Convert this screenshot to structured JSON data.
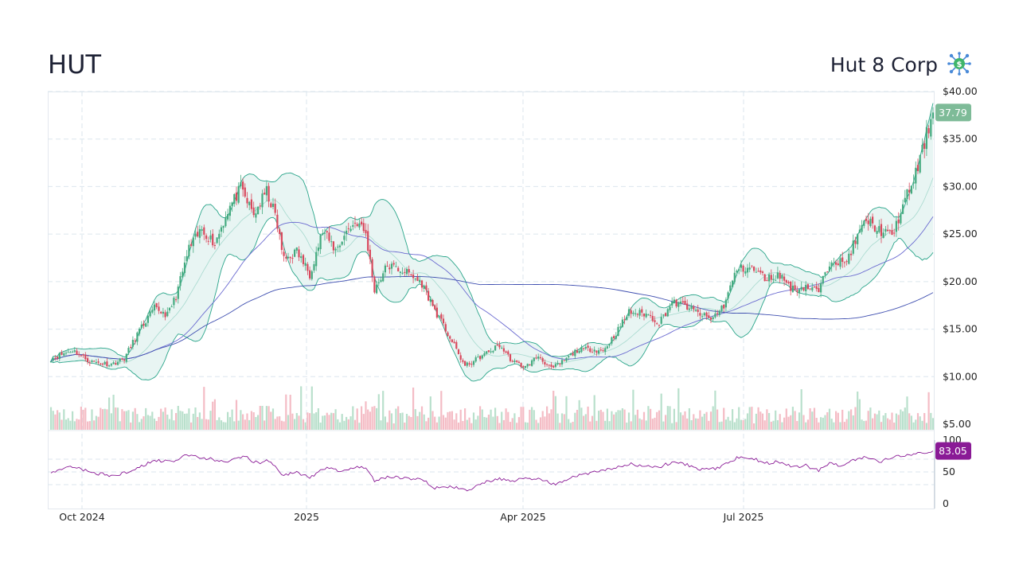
{
  "header": {
    "ticker": "HUT",
    "company": "Hut 8 Corp",
    "logo_icon": "bitcoin-network-icon"
  },
  "chart_data": {
    "type": "candlestick",
    "ticker": "HUT",
    "price_axis": {
      "min": 5,
      "max": 40,
      "ticks": [
        "$40.00",
        "$35.00",
        "$30.00",
        "$25.00",
        "$20.00",
        "$15.00",
        "$10.00",
        "$5.00"
      ]
    },
    "rsi_axis": {
      "min": 0,
      "max": 100,
      "ticks": [
        "100",
        "50",
        "0"
      ],
      "guides": [
        70,
        30
      ]
    },
    "x_ticks": [
      "Oct 2024",
      "2025",
      "Apr 2025",
      "Jul 2025"
    ],
    "last_price": "37.79",
    "last_rsi": "83.05",
    "colors": {
      "up": "#44aa7f",
      "down": "#d9485c",
      "volume_up": "#b9e0cc",
      "volume_down": "#f4bcc5",
      "band": "#2aa58a",
      "sma50": "#6a6ad0",
      "sma200": "#3f4fb0",
      "rsi": "#8a1a96",
      "last_price_bg": "#7ebb98",
      "rsi_bg": "#8a1a96"
    },
    "keyframes": [
      [
        0,
        11.9
      ],
      [
        10,
        12.8
      ],
      [
        18,
        11.6
      ],
      [
        28,
        11.3
      ],
      [
        34,
        11.9
      ],
      [
        40,
        14.5
      ],
      [
        48,
        17.2
      ],
      [
        54,
        16.5
      ],
      [
        58,
        18.5
      ],
      [
        64,
        23.5
      ],
      [
        70,
        25.5
      ],
      [
        76,
        24.0
      ],
      [
        82,
        27.5
      ],
      [
        88,
        29.8
      ],
      [
        94,
        27.0
      ],
      [
        100,
        29.5
      ],
      [
        104,
        27.0
      ],
      [
        108,
        22.3
      ],
      [
        114,
        23.2
      ],
      [
        120,
        20.8
      ],
      [
        126,
        25.3
      ],
      [
        132,
        23.3
      ],
      [
        138,
        25.6
      ],
      [
        142,
        26.3
      ],
      [
        146,
        25.0
      ],
      [
        150,
        19.2
      ],
      [
        156,
        21.7
      ],
      [
        164,
        21.1
      ],
      [
        172,
        19.8
      ],
      [
        178,
        17.0
      ],
      [
        184,
        14.5
      ],
      [
        192,
        11.1
      ],
      [
        200,
        12.2
      ],
      [
        208,
        13.3
      ],
      [
        214,
        11.6
      ],
      [
        220,
        11.0
      ],
      [
        226,
        12.2
      ],
      [
        232,
        10.8
      ],
      [
        238,
        11.7
      ],
      [
        244,
        12.8
      ],
      [
        250,
        12.9
      ],
      [
        256,
        12.7
      ],
      [
        262,
        14.6
      ],
      [
        268,
        16.8
      ],
      [
        276,
        16.6
      ],
      [
        282,
        15.7
      ],
      [
        288,
        17.8
      ],
      [
        294,
        17.5
      ],
      [
        300,
        16.7
      ],
      [
        306,
        16.0
      ],
      [
        312,
        17.5
      ],
      [
        318,
        21.3
      ],
      [
        324,
        21.5
      ],
      [
        332,
        20.3
      ],
      [
        338,
        20.7
      ],
      [
        344,
        19.2
      ],
      [
        350,
        19.5
      ],
      [
        356,
        19.0
      ],
      [
        362,
        22.5
      ],
      [
        368,
        21.8
      ],
      [
        372,
        23.8
      ],
      [
        378,
        26.5
      ],
      [
        384,
        25.4
      ],
      [
        390,
        24.8
      ],
      [
        396,
        28.5
      ],
      [
        402,
        32.0
      ],
      [
        406,
        35.5
      ],
      [
        409,
        37.79
      ]
    ],
    "rsi_keyframes": [
      [
        0,
        47
      ],
      [
        10,
        59
      ],
      [
        20,
        48
      ],
      [
        30,
        44
      ],
      [
        40,
        55
      ],
      [
        48,
        68
      ],
      [
        58,
        66
      ],
      [
        62,
        78
      ],
      [
        70,
        73
      ],
      [
        80,
        66
      ],
      [
        90,
        74
      ],
      [
        96,
        63
      ],
      [
        100,
        67
      ],
      [
        104,
        60
      ],
      [
        108,
        44
      ],
      [
        114,
        50
      ],
      [
        120,
        40
      ],
      [
        126,
        56
      ],
      [
        134,
        52
      ],
      [
        142,
        58
      ],
      [
        146,
        54
      ],
      [
        150,
        36
      ],
      [
        158,
        43
      ],
      [
        166,
        40
      ],
      [
        172,
        38
      ],
      [
        178,
        25
      ],
      [
        186,
        26
      ],
      [
        194,
        22
      ],
      [
        202,
        34
      ],
      [
        208,
        40
      ],
      [
        214,
        34
      ],
      [
        220,
        41
      ],
      [
        226,
        38
      ],
      [
        234,
        31
      ],
      [
        242,
        43
      ],
      [
        248,
        48
      ],
      [
        254,
        50
      ],
      [
        262,
        58
      ],
      [
        268,
        63
      ],
      [
        274,
        60
      ],
      [
        282,
        58
      ],
      [
        288,
        65
      ],
      [
        294,
        62
      ],
      [
        300,
        55
      ],
      [
        306,
        54
      ],
      [
        312,
        60
      ],
      [
        318,
        72
      ],
      [
        326,
        70
      ],
      [
        332,
        64
      ],
      [
        338,
        66
      ],
      [
        344,
        58
      ],
      [
        350,
        60
      ],
      [
        356,
        52
      ],
      [
        362,
        65
      ],
      [
        366,
        58
      ],
      [
        372,
        68
      ],
      [
        378,
        73
      ],
      [
        384,
        65
      ],
      [
        392,
        76
      ],
      [
        398,
        77
      ],
      [
        404,
        80
      ],
      [
        409,
        83.05
      ]
    ]
  }
}
